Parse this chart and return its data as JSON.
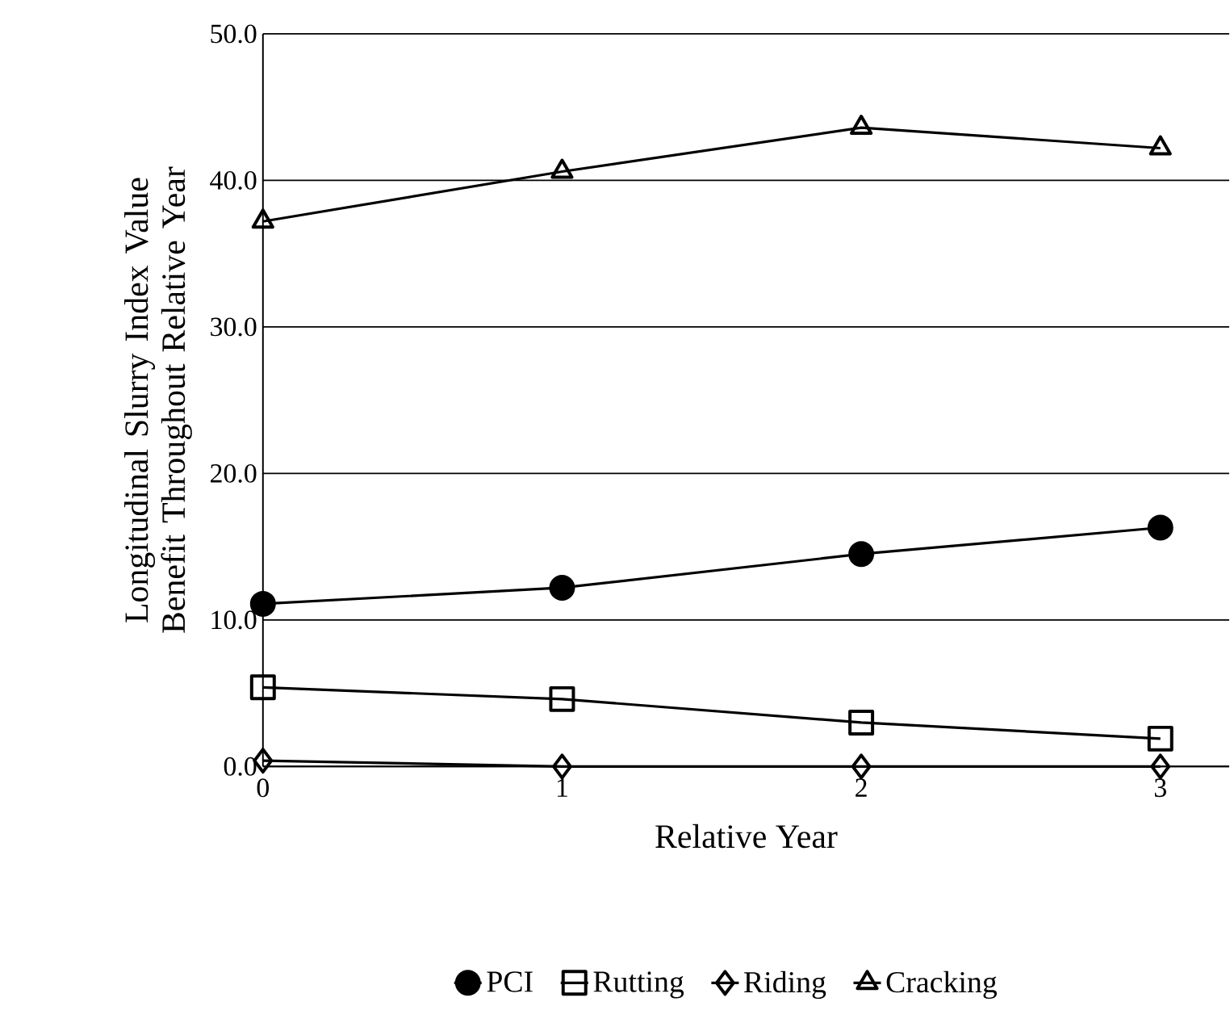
{
  "chart_data": {
    "type": "line",
    "xlabel": "Relative Year",
    "ylabel": "Longitudinal Slurry Index Value Benefit Throughout Relative Year",
    "x": [
      0,
      1,
      2,
      3
    ],
    "xlim": [
      0,
      3.23
    ],
    "xticks": [
      0,
      1,
      2,
      3
    ],
    "ylim": [
      0,
      50
    ],
    "yticks": [
      {
        "value": 0,
        "label": "0.0"
      },
      {
        "value": 10,
        "label": "10.0"
      },
      {
        "value": 20,
        "label": "20.0"
      },
      {
        "value": 30,
        "label": "30.0"
      },
      {
        "value": 40,
        "label": "40.0"
      },
      {
        "value": 50,
        "label": "50.0"
      }
    ],
    "grid": "y",
    "legend": "bottom",
    "line_style": "solid",
    "series": [
      {
        "name": "PCI",
        "color": "#000000",
        "marker": "circle",
        "values": [
          11.1,
          12.2,
          14.5,
          16.3
        ]
      },
      {
        "name": "Rutting",
        "color": "#000000",
        "marker": "square",
        "values": [
          5.4,
          4.6,
          3.0,
          1.9
        ]
      },
      {
        "name": "Riding",
        "color": "#000000",
        "marker": "diamond",
        "values": [
          0.4,
          0.0,
          0.0,
          0.0
        ]
      },
      {
        "name": "Cracking",
        "color": "#000000",
        "marker": "triangle",
        "values": [
          37.2,
          40.6,
          43.6,
          42.2
        ]
      }
    ]
  }
}
